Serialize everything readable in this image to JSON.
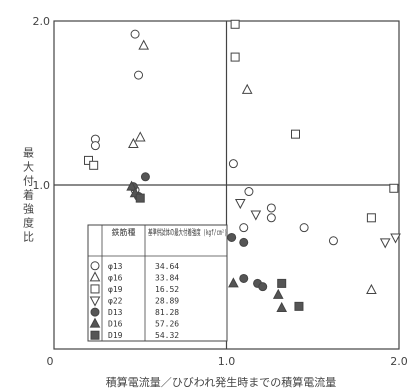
{
  "chart_data": {
    "type": "scatter",
    "title": "",
    "xlabel": "積算電流量／ひびわれ発生時までの積算電流量",
    "ylabel": "最大付着強度比",
    "xlim": [
      0,
      2.0
    ],
    "ylim": [
      0,
      2.0
    ],
    "x_ticks": [
      "0",
      "1.0",
      "2.0"
    ],
    "y_ticks": [
      "1.0",
      "2.0"
    ],
    "grid": "reference lines at x = 1.0 and y = 1.0",
    "legend": {
      "position": "inside-lower-left",
      "headers": [
        "鉄筋種",
        "基準供試体の最大付着強度 (kgf/cm²)"
      ],
      "rows": [
        {
          "symbol": "circle-open",
          "type": "φ13",
          "strength": "34.64"
        },
        {
          "symbol": "triangle-open",
          "type": "φ16",
          "strength": "33.84"
        },
        {
          "symbol": "square-open",
          "type": "φ19",
          "strength": "16.52"
        },
        {
          "symbol": "invtri-open",
          "type": "φ22",
          "strength": "28.89"
        },
        {
          "symbol": "circle-filled",
          "type": "D13",
          "strength": "81.28"
        },
        {
          "symbol": "triangle-filled",
          "type": "D16",
          "strength": "57.26"
        },
        {
          "symbol": "square-filled",
          "type": "D19",
          "strength": "54.32"
        }
      ]
    },
    "series": [
      {
        "symbol": "circle-open",
        "points": [
          [
            0.47,
            1.92
          ],
          [
            0.49,
            1.67
          ],
          [
            0.24,
            1.28
          ],
          [
            0.24,
            1.24
          ],
          [
            1.04,
            1.13
          ],
          [
            1.13,
            0.96
          ],
          [
            1.26,
            0.86
          ],
          [
            1.26,
            0.8
          ],
          [
            1.1,
            0.74
          ],
          [
            1.45,
            0.74
          ],
          [
            1.62,
            0.66
          ],
          [
            0.47,
            0.97
          ],
          [
            0.49,
            0.93
          ]
        ]
      },
      {
        "symbol": "triangle-open",
        "points": [
          [
            0.52,
            1.85
          ],
          [
            1.12,
            1.58
          ],
          [
            0.5,
            1.29
          ],
          [
            0.46,
            1.25
          ],
          [
            1.84,
            0.36
          ]
        ]
      },
      {
        "symbol": "square-open",
        "points": [
          [
            1.05,
            1.98
          ],
          [
            1.05,
            1.78
          ],
          [
            0.2,
            1.15
          ],
          [
            0.23,
            1.12
          ],
          [
            1.4,
            1.31
          ],
          [
            1.97,
            0.98
          ],
          [
            1.84,
            0.8
          ]
        ]
      },
      {
        "symbol": "invtri-open",
        "points": [
          [
            1.08,
            0.89
          ],
          [
            1.17,
            0.82
          ],
          [
            1.98,
            0.68
          ],
          [
            1.92,
            0.65
          ]
        ]
      },
      {
        "symbol": "circle-filled",
        "points": [
          [
            0.53,
            1.05
          ],
          [
            0.46,
            0.99
          ],
          [
            0.49,
            0.93
          ],
          [
            1.03,
            0.68
          ],
          [
            1.1,
            0.65
          ],
          [
            1.1,
            0.43
          ],
          [
            1.18,
            0.4
          ],
          [
            1.21,
            0.38
          ]
        ]
      },
      {
        "symbol": "triangle-filled",
        "points": [
          [
            0.45,
            0.99
          ],
          [
            0.47,
            0.95
          ],
          [
            1.04,
            0.4
          ],
          [
            1.3,
            0.33
          ],
          [
            1.32,
            0.25
          ]
        ]
      },
      {
        "symbol": "square-filled",
        "points": [
          [
            0.5,
            0.92
          ],
          [
            1.32,
            0.4
          ],
          [
            1.42,
            0.26
          ]
        ]
      }
    ]
  }
}
